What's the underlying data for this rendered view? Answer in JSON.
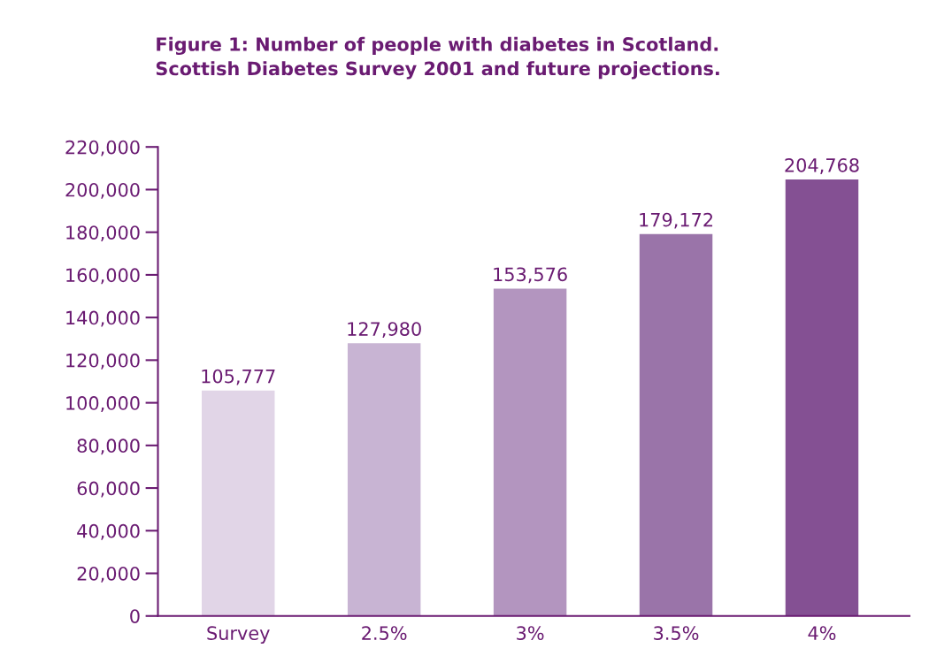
{
  "chart_data": {
    "type": "bar",
    "title": "Figure 1: Number of people with diabetes in Scotland.\nScottish Diabetes Survey 2001 and future projections.",
    "categories": [
      "Survey",
      "2.5%",
      "3%",
      "3.5%",
      "4%"
    ],
    "values": [
      105777,
      127980,
      153576,
      179172,
      204768
    ],
    "colors": [
      "#e1d5e7",
      "#c8b4d3",
      "#b395bf",
      "#9a74a9",
      "#845093"
    ],
    "value_labels": [
      "105,777",
      "127,980",
      "153,576",
      "179,172",
      "204,768"
    ],
    "ylim": [
      0,
      220000
    ],
    "yticks": [
      {
        "value": 0,
        "label": "0"
      },
      {
        "value": 20000,
        "label": "20,000"
      },
      {
        "value": 40000,
        "label": "40,000"
      },
      {
        "value": 60000,
        "label": "60,000"
      },
      {
        "value": 80000,
        "label": "80,000"
      },
      {
        "value": 100000,
        "label": "100,000"
      },
      {
        "value": 120000,
        "label": "120,000"
      },
      {
        "value": 140000,
        "label": "140,000"
      },
      {
        "value": 160000,
        "label": "160,000"
      },
      {
        "value": 180000,
        "label": "180,000"
      },
      {
        "value": 200000,
        "label": "200,000"
      },
      {
        "value": 220000,
        "label": "220,000"
      }
    ],
    "grid": false
  }
}
